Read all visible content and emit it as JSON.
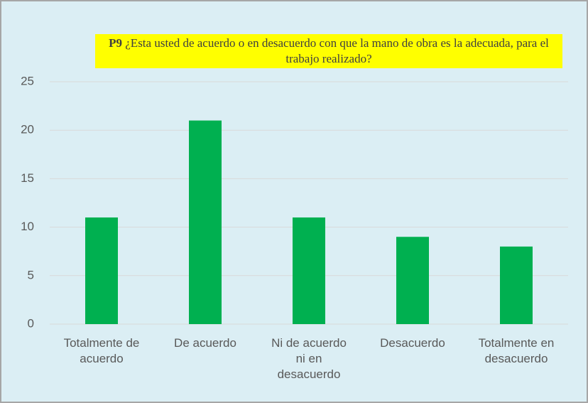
{
  "chart_data": {
    "type": "bar",
    "title_number": "P9",
    "title": "¿Esta usted de acuerdo o en desacuerdo con que la mano de obra es la adecuada, para el trabajo realizado?",
    "categories": [
      "Totalmente de acuerdo",
      "De acuerdo",
      "Ni de acuerdo ni en desacuerdo",
      "Desacuerdo",
      "Totalmente en desacuerdo"
    ],
    "values": [
      11,
      21,
      11,
      9,
      8
    ],
    "color": "#00b050",
    "ylim": [
      0,
      25
    ],
    "yticks": [
      0,
      5,
      10,
      15,
      20,
      25
    ],
    "grid": true
  }
}
